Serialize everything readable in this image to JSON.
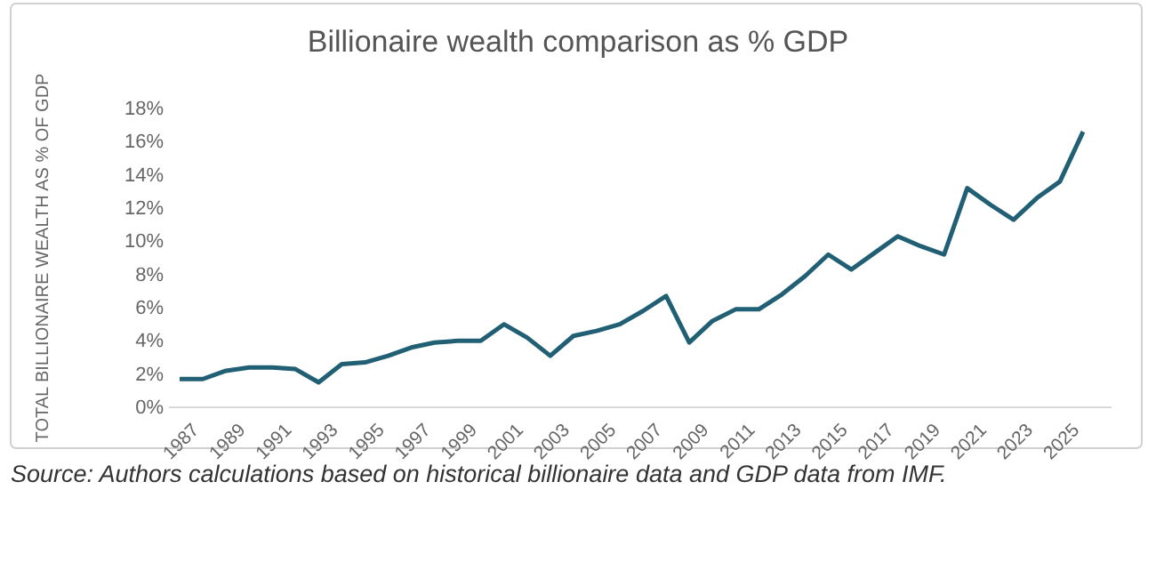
{
  "chart_data": {
    "type": "line",
    "title": "Billionaire wealth comparison as % GDP",
    "ylabel": "TOTAL BILLIONAIRE WEALTH AS % OF GDP",
    "categories": [
      "1987",
      null,
      "1989",
      null,
      "1991",
      null,
      "1993",
      null,
      "1995",
      null,
      "1997",
      null,
      "1999",
      null,
      "2001",
      null,
      "2003",
      null,
      "2005",
      null,
      "2007",
      null,
      "2009",
      null,
      "2011",
      null,
      "2013",
      null,
      "2015",
      null,
      "2017",
      null,
      "2019",
      null,
      "2021",
      null,
      "2023",
      null,
      "2025",
      null
    ],
    "series": [
      {
        "color": "#215f74",
        "values": [
          1.7,
          1.7,
          2.2,
          2.4,
          2.4,
          2.3,
          1.5,
          2.6,
          2.7,
          3.1,
          3.6,
          3.9,
          4.0,
          4.0,
          5.0,
          4.2,
          3.1,
          4.3,
          4.6,
          5.0,
          5.8,
          6.7,
          3.9,
          5.2,
          5.9,
          5.9,
          6.8,
          7.9,
          9.2,
          8.3,
          9.3,
          10.3,
          9.7,
          9.2,
          13.2,
          12.2,
          11.3,
          12.6,
          13.6,
          16.6
        ]
      }
    ],
    "ylim": [
      0,
      18
    ],
    "yticks": [
      {
        "value": 0,
        "label": "0%"
      },
      {
        "value": 2,
        "label": "2%"
      },
      {
        "value": 4,
        "label": "4%"
      },
      {
        "value": 6,
        "label": "6%"
      },
      {
        "value": 8,
        "label": "8%"
      },
      {
        "value": 10,
        "label": "10%"
      },
      {
        "value": 12,
        "label": "12%"
      },
      {
        "value": 14,
        "label": "14%"
      },
      {
        "value": 16,
        "label": "16%"
      },
      {
        "value": 18,
        "label": "18%"
      }
    ],
    "grid": false,
    "marker": "none",
    "line_style": "solid",
    "annotations": [
      "Source: Authors calculations based on historical billionaire data and GDP data from IMF."
    ]
  }
}
